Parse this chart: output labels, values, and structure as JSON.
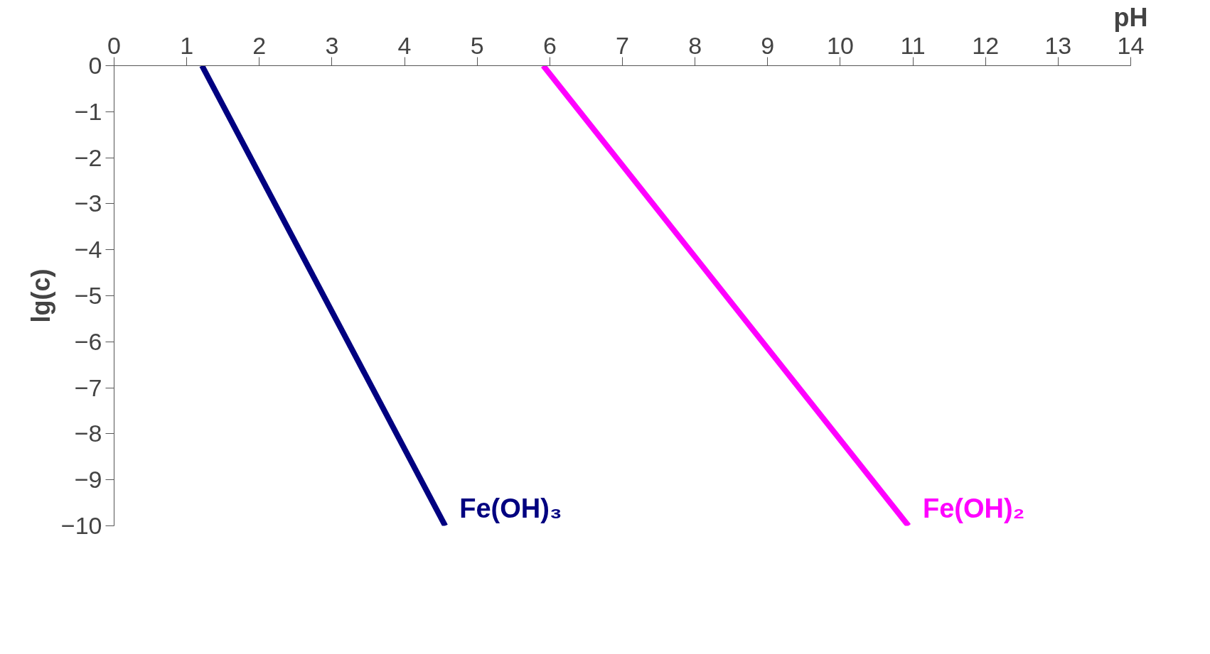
{
  "chart_data": {
    "type": "line",
    "xlabel": "pH",
    "ylabel": "lg(c)",
    "xlim": [
      0,
      14
    ],
    "xticks": [
      0,
      1,
      2,
      3,
      4,
      5,
      6,
      7,
      8,
      9,
      10,
      11,
      12,
      13,
      14
    ],
    "ylim": [
      -10,
      0
    ],
    "yticks": [
      0,
      -1,
      -2,
      -3,
      -4,
      -5,
      -6,
      -7,
      -8,
      -9,
      -10
    ],
    "grid": false,
    "marker": "none",
    "line_style": "solid",
    "series": [
      {
        "name": "Fe(OH)₃",
        "color": "#000080",
        "x": [
          1.21,
          4.56
        ],
        "values": [
          0,
          -10
        ]
      },
      {
        "name": "Fe(OH)₂",
        "color": "#ff00ff",
        "x": [
          5.91,
          10.94
        ],
        "values": [
          0,
          -10
        ]
      }
    ]
  }
}
